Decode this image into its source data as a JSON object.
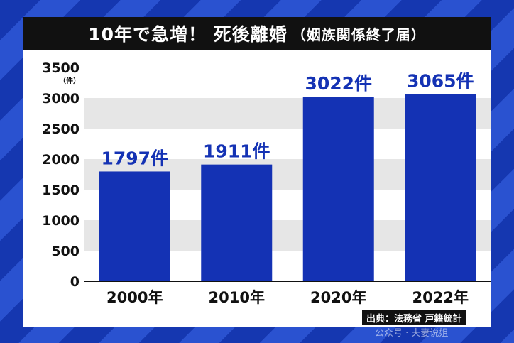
{
  "chart_data": {
    "type": "bar",
    "title": "10年で急増！ 死後離婚",
    "subtitle": "（姻族関係終了届）",
    "categories": [
      "2000年",
      "2010年",
      "2020年",
      "2022年"
    ],
    "values": [
      1797,
      1911,
      3022,
      3065
    ],
    "data_labels": [
      "1797件",
      "1911件",
      "3022件",
      "3065件"
    ],
    "yticks": [
      0,
      500,
      1000,
      1500,
      2000,
      2500,
      3000,
      3500
    ],
    "y_unit": "（件）",
    "ylim": [
      0,
      3500
    ],
    "grid": "alternating bands",
    "bar_color": "#1432b4",
    "label_color": "#1432b4"
  },
  "source": "出典：法務省 戸籍統計",
  "watermark": "公众号 · 夫妻说姐"
}
